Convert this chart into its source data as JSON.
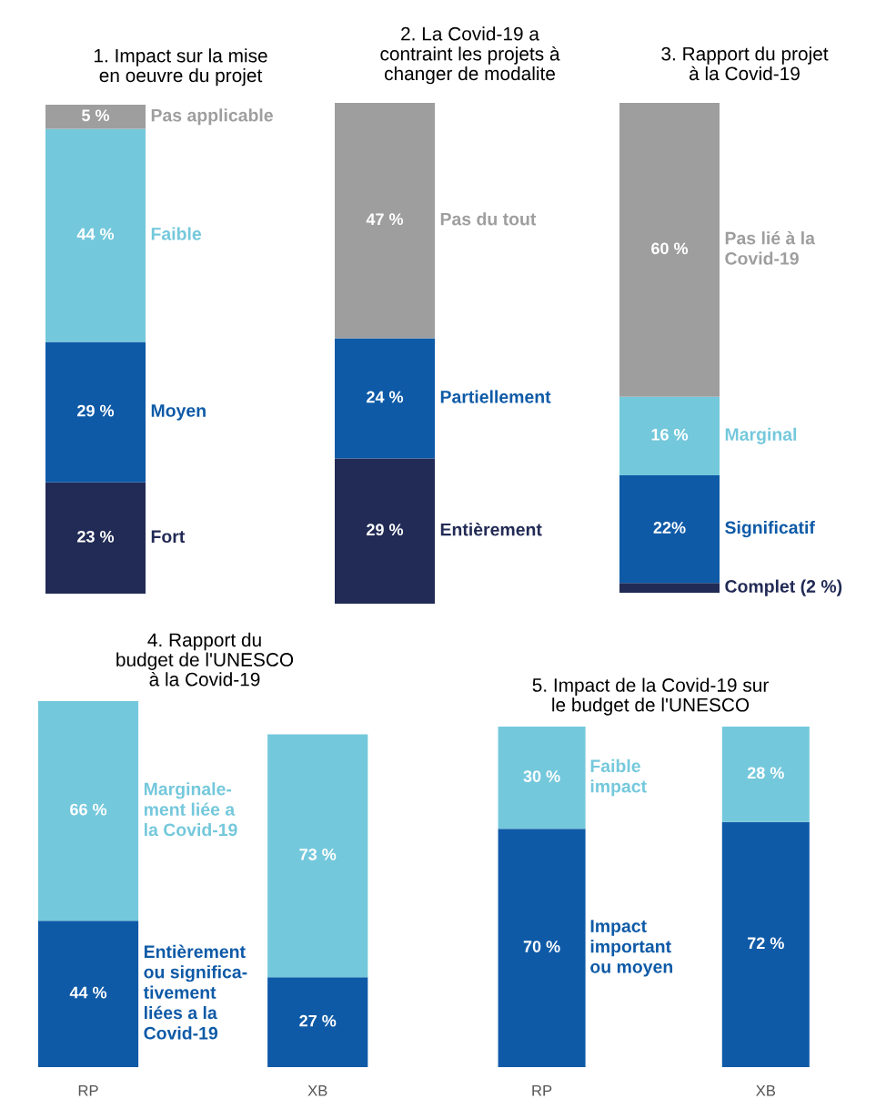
{
  "chart_data": [
    {
      "type": "bar",
      "stacked": true,
      "title": "1. Impact sur la mise\nen oeuvre du projet",
      "categories": [
        null
      ],
      "series": [
        {
          "name": "Fort",
          "color": "#222b55",
          "values": [
            23
          ],
          "value_labels": [
            "23 %"
          ]
        },
        {
          "name": "Moyen",
          "color": "#0e5aa7",
          "values": [
            29
          ],
          "value_labels": [
            "29 %"
          ]
        },
        {
          "name": "Faible",
          "color": "#74c8dc",
          "values": [
            44
          ],
          "value_labels": [
            "44 %"
          ]
        },
        {
          "name": "Pas applicable",
          "color": "#9e9e9e",
          "values": [
            5
          ],
          "value_labels": [
            "5 %"
          ]
        }
      ]
    },
    {
      "type": "bar",
      "stacked": true,
      "title": "2. La Covid-19 a\ncontraint les projets à\nchanger de modalite",
      "categories": [
        null
      ],
      "series": [
        {
          "name": "Entièrement",
          "color": "#222b55",
          "values": [
            29
          ],
          "value_labels": [
            "29 %"
          ]
        },
        {
          "name": "Partiellement",
          "color": "#0e5aa7",
          "values": [
            24
          ],
          "value_labels": [
            "24 %"
          ]
        },
        {
          "name": "Pas du tout",
          "color": "#9e9e9e",
          "values": [
            47
          ],
          "value_labels": [
            "47 %"
          ]
        }
      ]
    },
    {
      "type": "bar",
      "stacked": true,
      "title": "3. Rapport du projet\nà la Covid-19",
      "categories": [
        null
      ],
      "series": [
        {
          "name": "Complet (2 %)",
          "color": "#222b55",
          "values": [
            2
          ],
          "value_labels": [
            null
          ]
        },
        {
          "name": "Significatif",
          "color": "#0e5aa7",
          "values": [
            22
          ],
          "value_labels": [
            "22%"
          ]
        },
        {
          "name": "Marginal",
          "color": "#74c8dc",
          "values": [
            16
          ],
          "value_labels": [
            "16 %"
          ]
        },
        {
          "name": "Pas lié à la\nCovid-19",
          "color": "#9e9e9e",
          "values": [
            60
          ],
          "value_labels": [
            "60 %"
          ]
        }
      ]
    },
    {
      "type": "bar",
      "stacked": true,
      "title": "4. Rapport du\nbudget de l'UNESCO\nà la Covid-19",
      "categories": [
        "RP",
        "XB"
      ],
      "series": [
        {
          "name": "Entièrement\nou significa-\ntivement\nliées a la\nCovid-19",
          "color": "#0e5aa7",
          "values": [
            44,
            27
          ],
          "value_labels": [
            "44 %",
            "27 %"
          ]
        },
        {
          "name": "Marginale-\nment liée a\nla Covid-19",
          "color": "#74c8dc",
          "values": [
            66,
            73
          ],
          "value_labels": [
            "66 %",
            "73 %"
          ]
        }
      ]
    },
    {
      "type": "bar",
      "stacked": true,
      "title": "5. Impact de la Covid-19 sur\nle budget de l'UNESCO",
      "categories": [
        "RP",
        "XB"
      ],
      "series": [
        {
          "name": "Impact\nimportant\nou moyen",
          "color": "#0e5aa7",
          "values": [
            70,
            72
          ],
          "value_labels": [
            "70 %",
            "72 %"
          ]
        },
        {
          "name": "Faible\nimpact",
          "color": "#74c8dc",
          "values": [
            30,
            28
          ],
          "value_labels": [
            "30 %",
            "28 %"
          ]
        }
      ]
    }
  ]
}
